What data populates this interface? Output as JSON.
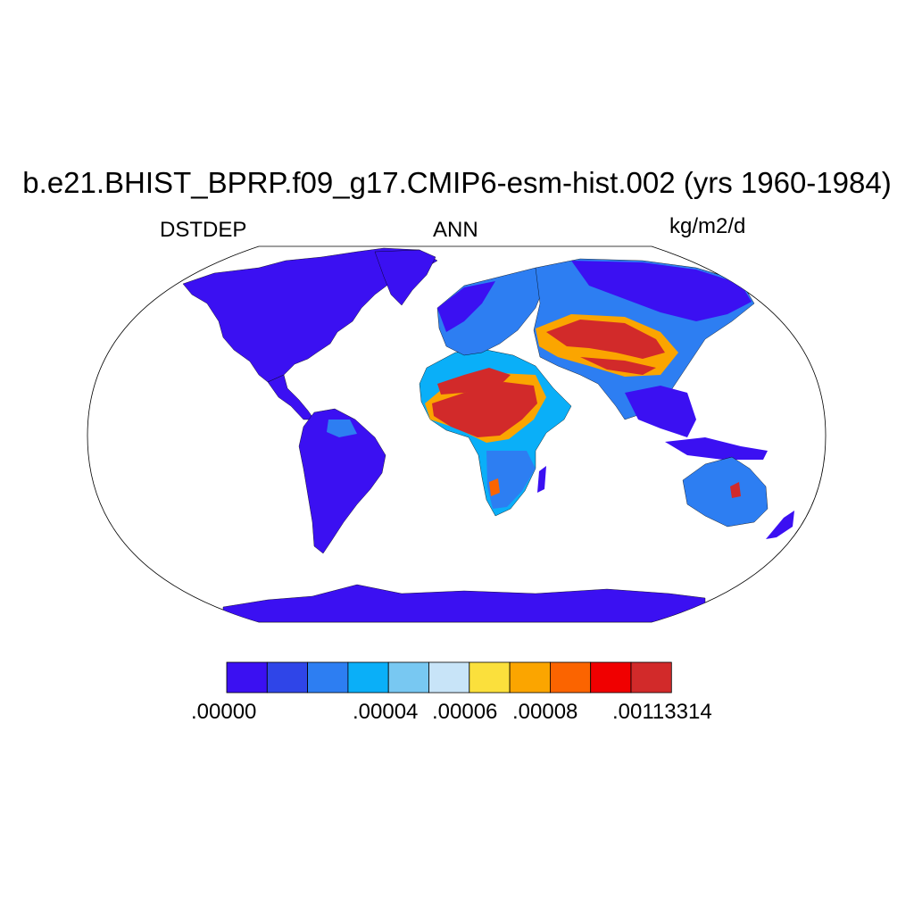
{
  "title": "b.e21.BHIST_BPRP.f09_g17.CMIP6-esm-hist.002 (yrs 1960-1984)",
  "variable": "DSTDEP",
  "season": "ANN",
  "units": "kg/m2/d",
  "colorbar": {
    "colors": [
      "#3b10f2",
      "#2f45e8",
      "#2d7ef2",
      "#0aaff8",
      "#78c8f2",
      "#c8e4f8",
      "#fbe03c",
      "#fba500",
      "#fb6400",
      "#f00000",
      "#d22a2a"
    ],
    "tick_labels": [
      ".00000",
      ".00004",
      ".00006",
      ".00008",
      ".00113314"
    ]
  }
}
